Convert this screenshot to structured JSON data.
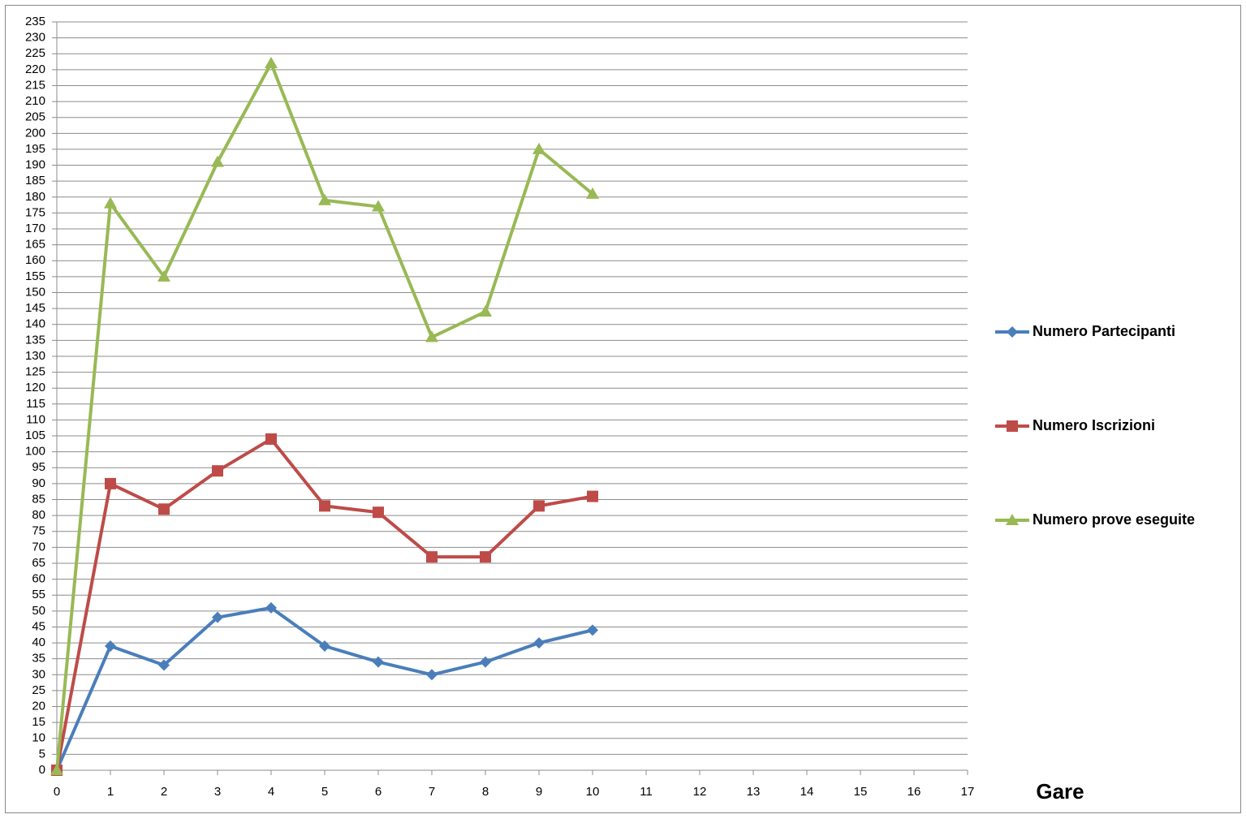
{
  "chart_data": {
    "type": "line",
    "x_label": "Gare",
    "x": [
      0,
      1,
      2,
      3,
      4,
      5,
      6,
      7,
      8,
      9,
      10
    ],
    "series": [
      {
        "name": "Numero Partecipanti",
        "color": "#4a7ebb",
        "marker": "diamond",
        "values": [
          0,
          39,
          33,
          48,
          51,
          39,
          34,
          30,
          34,
          40,
          44
        ]
      },
      {
        "name": "Numero Iscrizioni",
        "color": "#be4b48",
        "marker": "square",
        "values": [
          0,
          90,
          82,
          94,
          104,
          83,
          81,
          67,
          67,
          83,
          86
        ]
      },
      {
        "name": "Numero prove eseguite",
        "color": "#98b954",
        "marker": "triangle",
        "values": [
          0,
          178,
          155,
          191,
          222,
          179,
          177,
          136,
          144,
          195,
          181
        ]
      }
    ],
    "xlim": [
      0,
      17
    ],
    "xticks": [
      0,
      1,
      2,
      3,
      4,
      5,
      6,
      7,
      8,
      9,
      10,
      11,
      12,
      13,
      14,
      15,
      16,
      17
    ],
    "ylim": [
      0,
      235
    ],
    "yticks": [
      0,
      5,
      10,
      15,
      20,
      25,
      30,
      35,
      40,
      45,
      50,
      55,
      60,
      65,
      70,
      75,
      80,
      85,
      90,
      95,
      100,
      105,
      110,
      115,
      120,
      125,
      130,
      135,
      140,
      145,
      150,
      155,
      160,
      165,
      170,
      175,
      180,
      185,
      190,
      195,
      200,
      205,
      210,
      215,
      220,
      225,
      230,
      235
    ],
    "grid": true,
    "legend": "right"
  }
}
